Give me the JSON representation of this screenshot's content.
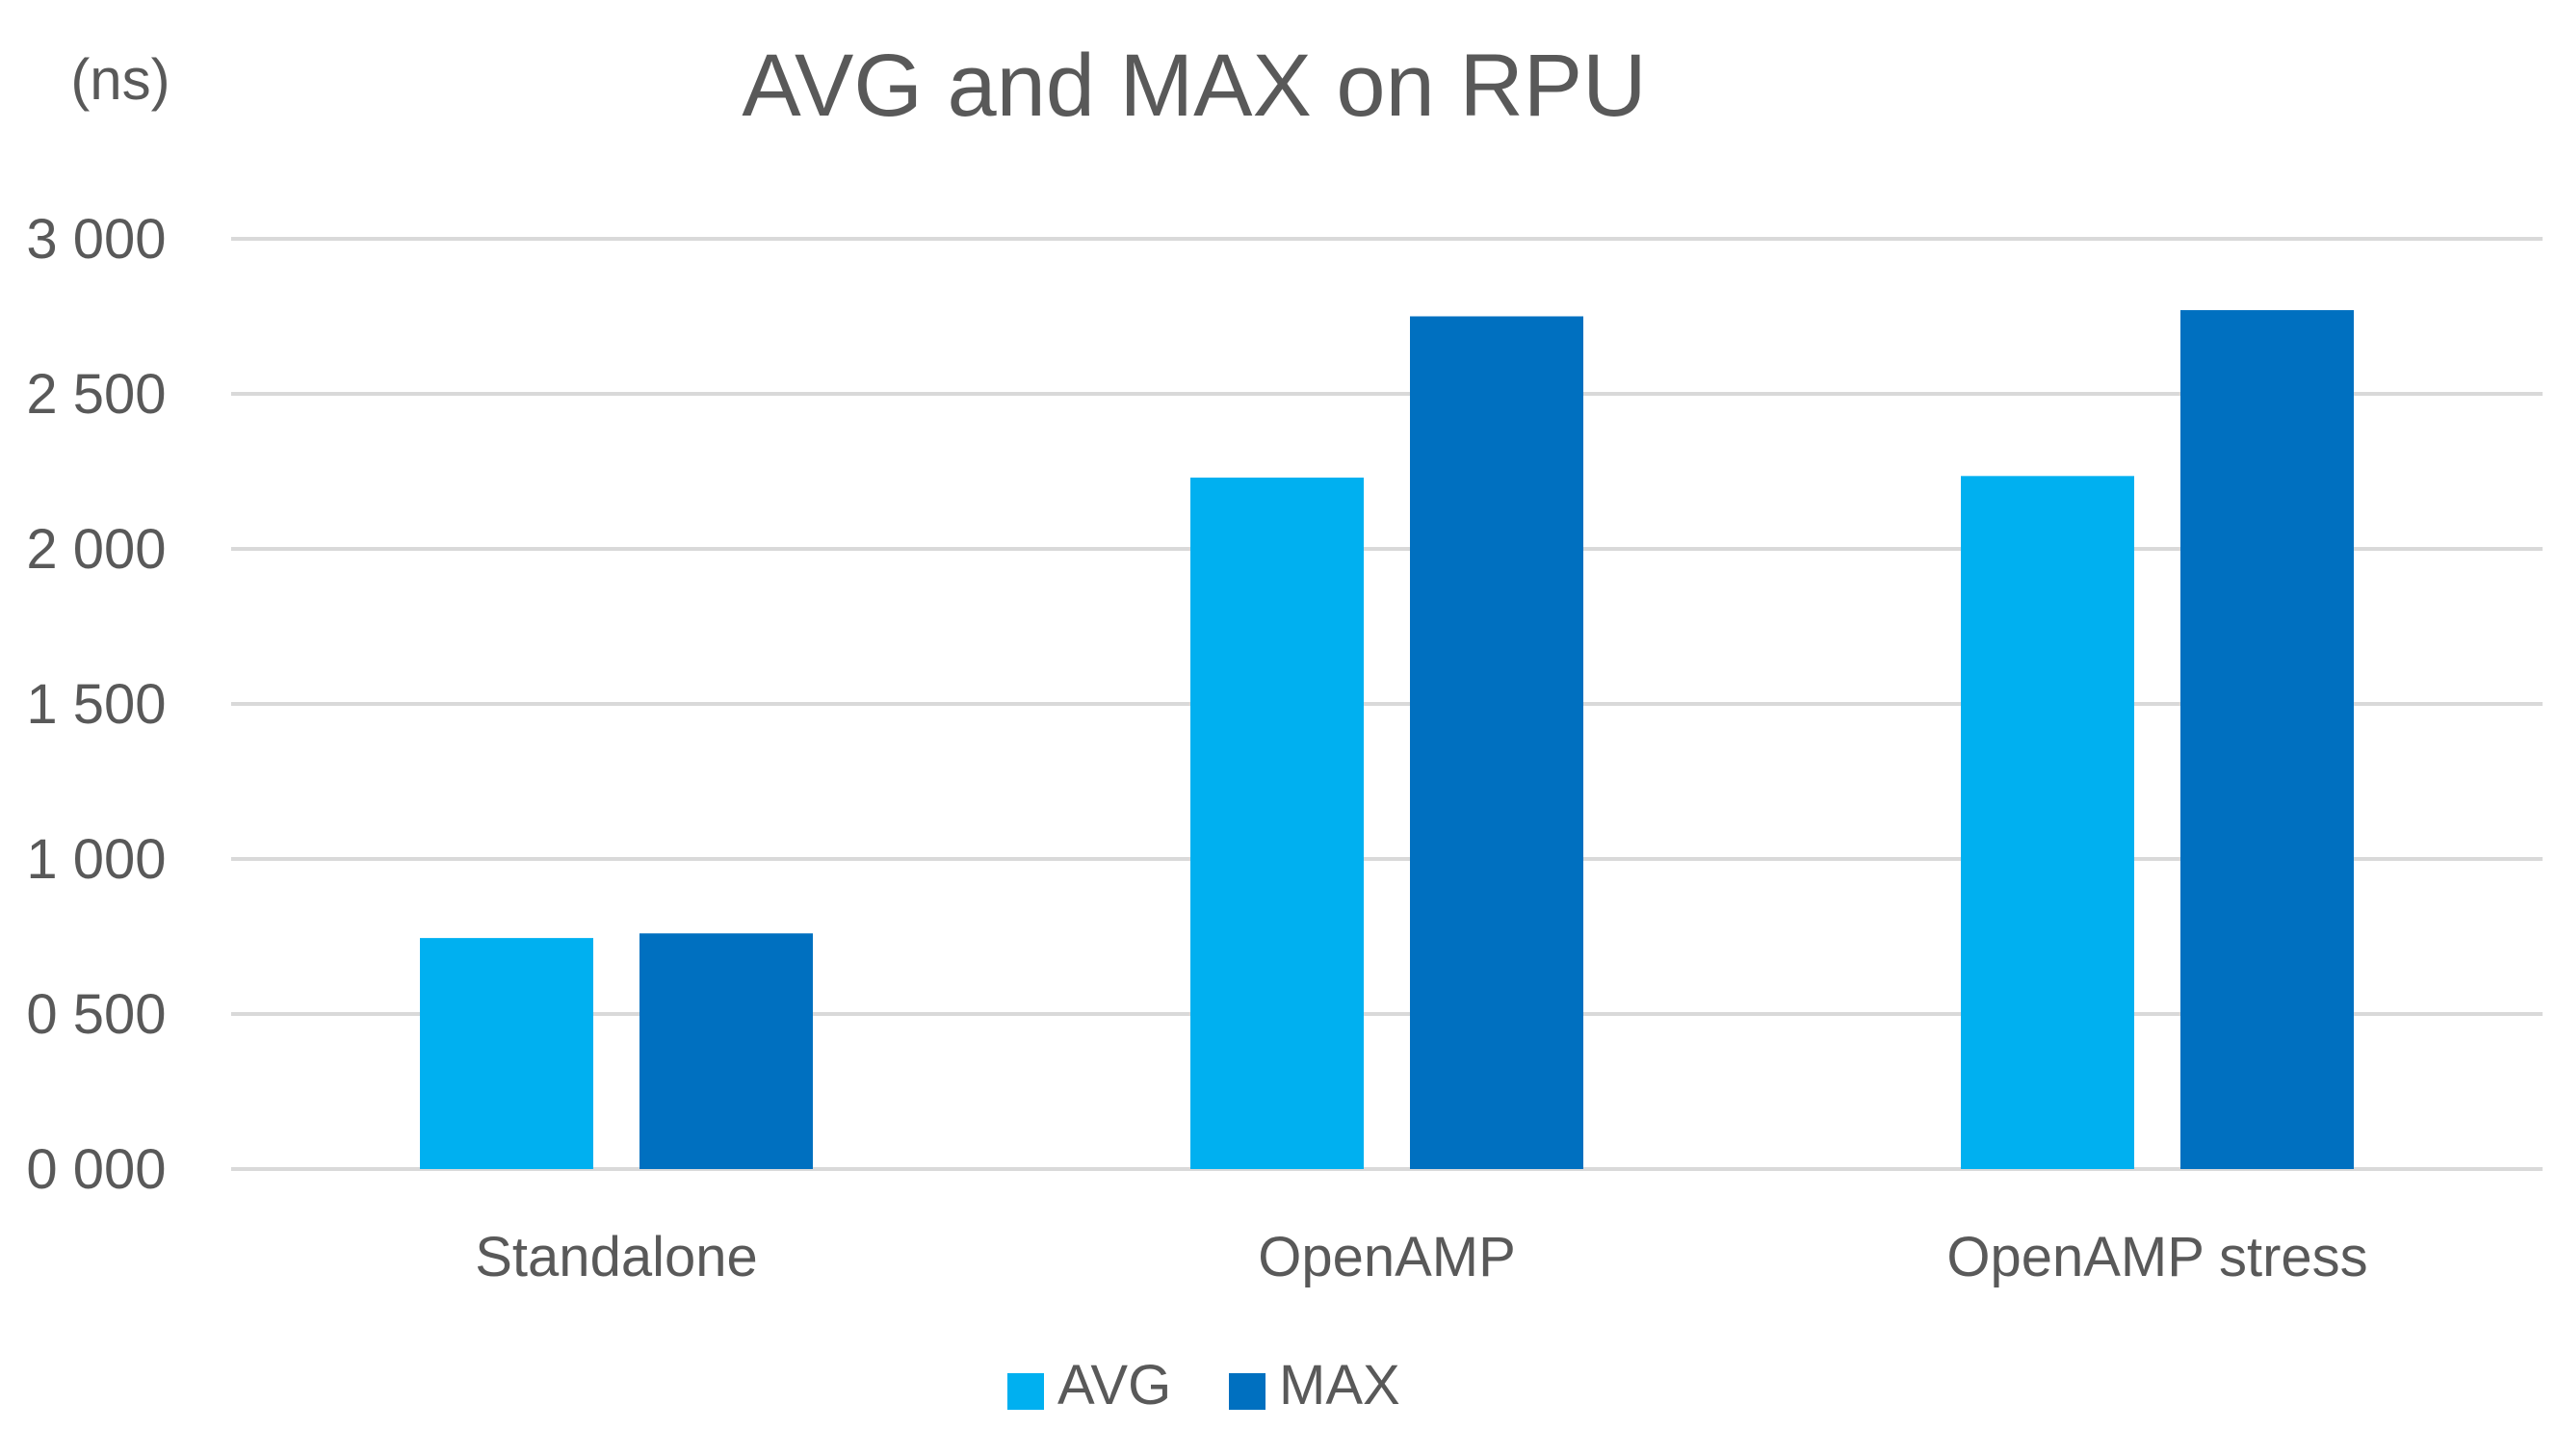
{
  "chart_data": {
    "type": "bar",
    "title": "AVG and MAX on RPU",
    "unit_label": "(ns)",
    "xlabel": "",
    "ylabel": "",
    "categories": [
      "Standalone",
      "OpenAMP",
      "OpenAMP stress"
    ],
    "series": [
      {
        "name": "AVG",
        "color": "#00B0F0",
        "values": [
          745,
          2230,
          2235
        ]
      },
      {
        "name": "MAX",
        "color": "#0070C0",
        "values": [
          760,
          2750,
          2770
        ]
      }
    ],
    "ylim": [
      0,
      3000
    ],
    "yticks": [
      0,
      500,
      1000,
      1500,
      2000,
      2500,
      3000
    ],
    "ytick_labels": [
      "0 000",
      "0 500",
      "1 000",
      "1 500",
      "2 000",
      "2 500",
      "3 000"
    ],
    "grid": true,
    "gridline_color": "#D9D9D9",
    "legend_position": "bottom-center"
  }
}
